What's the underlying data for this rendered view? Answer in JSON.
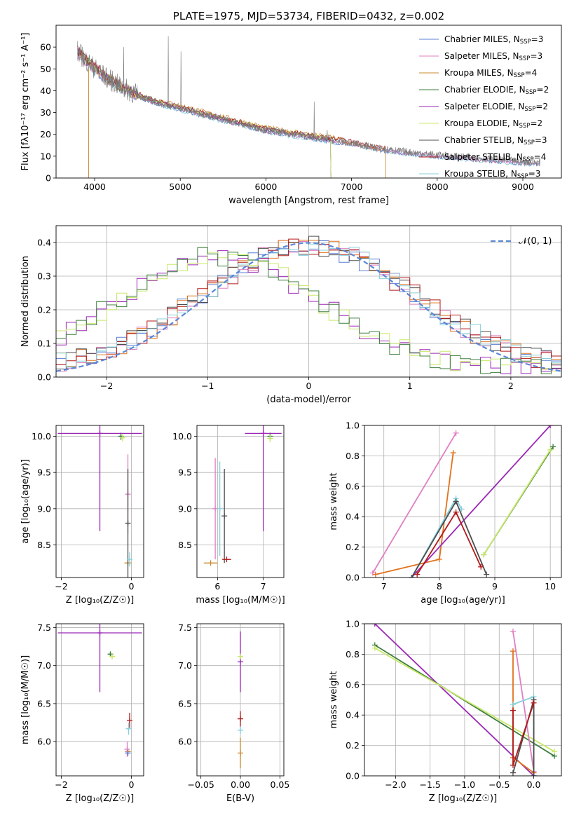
{
  "colors": {
    "chabrier_miles": "#5b7fd4",
    "salpeter_miles": "#e07fc2",
    "kroupa_miles": "#c98a2e",
    "chabrier_elodie": "#3f7f3f",
    "salpeter_elodie": "#9b27b6",
    "kroupa_elodie": "#c8e86a",
    "chabrier_stelib": "#4d4d4d",
    "salpeter_stelib": "#b21a1a",
    "kroupa_stelib": "#86d0dc",
    "orange": "#e0741f",
    "gauss": "#5b87d6"
  },
  "chart_data": [
    {
      "id": "spectrum",
      "type": "line",
      "title": "PLATE=1975, MJD=53734, FIBERID=0432, z=0.002",
      "xlabel": "wavelength [Angstrom, rest frame]",
      "ylabel": "Flux [fλ10⁻¹⁷ erg cm⁻² s⁻¹ A⁻¹]",
      "xlim": [
        3550,
        9450
      ],
      "ylim": [
        0,
        70
      ],
      "xticks": [
        4000,
        5000,
        6000,
        7000,
        8000,
        9000
      ],
      "yticks": [
        0,
        10,
        20,
        30,
        40,
        50,
        60
      ],
      "legend_position": "top-right",
      "legend": [
        {
          "label": "Chabrier MILES, N",
          "sub": "SSP",
          "suffix": "=3",
          "color": "chabrier_miles"
        },
        {
          "label": "Salpeter MILES, N",
          "sub": "SSP",
          "suffix": "=3",
          "color": "salpeter_miles"
        },
        {
          "label": "Kroupa MILES, N",
          "sub": "SSP",
          "suffix": "=4",
          "color": "kroupa_miles"
        },
        {
          "label": "Chabrier ELODIE, N",
          "sub": "SSP",
          "suffix": "=2",
          "color": "chabrier_elodie"
        },
        {
          "label": "Salpeter ELODIE, N",
          "sub": "SSP",
          "suffix": "=2",
          "color": "salpeter_elodie"
        },
        {
          "label": "Kroupa ELODIE, N",
          "sub": "SSP",
          "suffix": "=2",
          "color": "kroupa_elodie"
        },
        {
          "label": "Chabrier STELIB, N",
          "sub": "SSP",
          "suffix": "=3",
          "color": "chabrier_stelib"
        },
        {
          "label": "Salpeter STELIB, N",
          "sub": "SSP",
          "suffix": "=4",
          "color": "salpeter_stelib"
        },
        {
          "label": "Kroupa STELIB, N",
          "sub": "SSP",
          "suffix": "=3",
          "color": "kroupa_stelib"
        }
      ],
      "continuum": [
        [
          3800,
          58
        ],
        [
          3950,
          52
        ],
        [
          4100,
          47
        ],
        [
          4300,
          42
        ],
        [
          4500,
          38
        ],
        [
          4700,
          35
        ],
        [
          5000,
          32
        ],
        [
          5300,
          29
        ],
        [
          5600,
          26
        ],
        [
          6000,
          22
        ],
        [
          6500,
          19
        ],
        [
          7000,
          16
        ],
        [
          7400,
          13
        ],
        [
          8000,
          10.5
        ],
        [
          8500,
          9
        ],
        [
          9000,
          7.5
        ],
        [
          9200,
          7
        ]
      ],
      "emission_lines": [
        [
          4340,
          60
        ],
        [
          4861,
          65
        ],
        [
          5007,
          58
        ],
        [
          6563,
          35
        ],
        [
          6717,
          22
        ],
        [
          6731,
          20
        ]
      ],
      "model_ends": [
        {
          "series": "kroupa_miles",
          "x": 3930,
          "drop": true
        },
        {
          "series": "kroupa_elodie",
          "x": 6760,
          "drop": true
        },
        {
          "series": "kroupa_miles",
          "x": 7400,
          "drop": true
        }
      ]
    },
    {
      "id": "residuals",
      "type": "histogram",
      "xlabel": "(data-model)/error",
      "ylabel": "Normed distribution",
      "xlim": [
        -2.5,
        2.5
      ],
      "ylim": [
        0,
        0.45
      ],
      "xticks": [
        -2,
        -1,
        0,
        1,
        2
      ],
      "yticks": [
        0.0,
        0.1,
        0.2,
        0.3,
        0.4
      ],
      "gauss_label": "𝒩(0, 1)",
      "legend_position": "top-right",
      "bin_width": 0.1
    },
    {
      "id": "age_Z",
      "type": "scatter",
      "xlabel": "Z [log₁₀(Z/Z☉)]",
      "ylabel": "age  [log₁₀(age/yr)]",
      "xlim": [
        -2.15,
        0.35
      ],
      "ylim": [
        8.05,
        10.15
      ],
      "xticks": [
        -2,
        0
      ],
      "yticks": [
        8.5,
        9.0,
        9.5,
        10.0
      ],
      "points": [
        {
          "x": -0.3,
          "y": 10.0,
          "ex": 0.05,
          "ey": 0.05,
          "color": "chabrier_elodie"
        },
        {
          "x": -0.25,
          "y": 9.98,
          "ex": 0.05,
          "ey": 0.05,
          "color": "kroupa_elodie"
        },
        {
          "x": -0.9,
          "y": 10.04,
          "ex": 1.2,
          "ey": 1.35,
          "color": "salpeter_elodie"
        },
        {
          "x": -0.1,
          "y": 8.25,
          "ex": 0.1,
          "ey": 0.0,
          "color": "kroupa_miles"
        },
        {
          "x": -0.1,
          "y": 9.2,
          "ex": 0.0,
          "ey": 0.55,
          "color": "salpeter_miles"
        },
        {
          "x": -0.1,
          "y": 8.8,
          "ex": 0.0,
          "ey": 0.75,
          "color": "chabrier_stelib"
        },
        {
          "x": -0.05,
          "y": 8.3,
          "ex": 0.0,
          "ey": 0.1,
          "color": "kroupa_stelib"
        }
      ]
    },
    {
      "id": "age_mass",
      "type": "scatter",
      "xlabel": "mass [log₁₀(M/M☉)]",
      "ylabel": "",
      "xlim": [
        5.55,
        7.45
      ],
      "ylim": [
        8.05,
        10.15
      ],
      "xticks": [
        6,
        7
      ],
      "yticks": [
        8.5,
        9.0,
        9.5,
        10.0
      ],
      "points": [
        {
          "x": 7.15,
          "y": 10.0,
          "ex": 0.03,
          "ey": 0.05,
          "color": "chabrier_elodie"
        },
        {
          "x": 7.15,
          "y": 9.97,
          "ex": 0.03,
          "ey": 0.05,
          "color": "kroupa_elodie"
        },
        {
          "x": 7.0,
          "y": 10.04,
          "ex": 0.4,
          "ey": 1.35,
          "color": "salpeter_elodie"
        },
        {
          "x": 5.85,
          "y": 8.25,
          "ex": 0.15,
          "ey": 0.0,
          "color": "kroupa_miles"
        },
        {
          "x": 5.95,
          "y": 9.0,
          "ex": 0.0,
          "ey": 0.7,
          "color": "salpeter_miles"
        },
        {
          "x": 6.15,
          "y": 8.9,
          "ex": 0.0,
          "ey": 0.65,
          "color": "chabrier_stelib"
        },
        {
          "x": 6.2,
          "y": 8.3,
          "ex": 0.1,
          "ey": 0.0,
          "color": "salpeter_stelib"
        },
        {
          "x": 6.05,
          "y": 9.0,
          "ex": 0.0,
          "ey": 0.65,
          "color": "kroupa_stelib"
        }
      ]
    },
    {
      "id": "weight_age",
      "type": "line",
      "xlabel": "age  [log₁₀(age/yr)]",
      "ylabel": "mass weight",
      "xlim": [
        6.65,
        10.2
      ],
      "ylim": [
        0,
        1.0
      ],
      "xticks": [
        7,
        8,
        9,
        10
      ],
      "yticks": [
        0.0,
        0.2,
        0.4,
        0.6,
        0.8,
        1.0
      ],
      "series": [
        {
          "color": "salpeter_miles",
          "x": [
            6.8,
            8.3
          ],
          "y": [
            0.03,
            0.95
          ]
        },
        {
          "color": "orange",
          "x": [
            6.85,
            8.0,
            8.25
          ],
          "y": [
            0.02,
            0.12,
            0.82
          ]
        },
        {
          "color": "salpeter_elodie",
          "x": [
            7.5,
            10.0
          ],
          "y": [
            0.0,
            1.0
          ]
        },
        {
          "color": "chabrier_elodie",
          "x": [
            8.8,
            10.05
          ],
          "y": [
            0.15,
            0.86
          ]
        },
        {
          "color": "kroupa_elodie",
          "x": [
            8.8,
            10.0
          ],
          "y": [
            0.15,
            0.84
          ]
        },
        {
          "color": "kroupa_stelib",
          "x": [
            7.5,
            8.3,
            8.4
          ],
          "y": [
            0.0,
            0.52,
            0.45
          ]
        },
        {
          "color": "chabrier_stelib",
          "x": [
            7.5,
            8.3,
            8.85
          ],
          "y": [
            0.0,
            0.5,
            0.02
          ]
        },
        {
          "color": "salpeter_stelib",
          "x": [
            7.6,
            8.3,
            8.75
          ],
          "y": [
            0.02,
            0.43,
            0.07
          ]
        }
      ]
    },
    {
      "id": "mass_Z",
      "type": "scatter",
      "xlabel": "Z [log₁₀(Z/Z☉)]",
      "ylabel": "mass [log₁₀(M/M☉)]",
      "xlim": [
        -2.15,
        0.35
      ],
      "ylim": [
        5.55,
        7.55
      ],
      "xticks": [
        -2,
        0
      ],
      "yticks": [
        6.0,
        6.5,
        7.0,
        7.5
      ],
      "points": [
        {
          "x": -0.6,
          "y": 7.15,
          "ex": 0.08,
          "ey": 0.03,
          "color": "chabrier_elodie"
        },
        {
          "x": -0.55,
          "y": 7.12,
          "ex": 0.08,
          "ey": 0.03,
          "color": "kroupa_elodie"
        },
        {
          "x": -0.9,
          "y": 7.43,
          "ex": 1.2,
          "ey": 0.78,
          "color": "salpeter_elodie"
        },
        {
          "x": -0.1,
          "y": 5.87,
          "ex": 0.08,
          "ey": 0.0,
          "color": "kroupa_miles"
        },
        {
          "x": -0.12,
          "y": 5.9,
          "ex": 0.0,
          "ey": 0.1,
          "color": "salpeter_miles"
        },
        {
          "x": -0.1,
          "y": 5.85,
          "ex": 0.08,
          "ey": 0.0,
          "color": "chabrier_miles"
        },
        {
          "x": -0.05,
          "y": 6.28,
          "ex": 0.0,
          "ey": 0.1,
          "color": "salpeter_stelib"
        },
        {
          "x": -0.08,
          "y": 6.17,
          "ex": 0.0,
          "ey": 0.08,
          "color": "kroupa_stelib"
        }
      ]
    },
    {
      "id": "mass_ebv",
      "type": "scatter",
      "xlabel": "E(B-V)",
      "ylabel": "",
      "xlim": [
        -0.055,
        0.055
      ],
      "ylim": [
        5.55,
        7.55
      ],
      "xticks": [
        -0.05,
        0.0,
        0.05
      ],
      "xtick_labels": [
        "−0.05",
        "0.00",
        "0.05"
      ],
      "yticks": [
        6.0,
        6.5,
        7.0,
        7.5
      ],
      "points": [
        {
          "x": 0.0,
          "y": 7.05,
          "ex": 0,
          "ey": 0.4,
          "color": "salpeter_elodie"
        },
        {
          "x": 0.0,
          "y": 7.12,
          "ex": 0,
          "ey": 0.03,
          "color": "kroupa_elodie"
        },
        {
          "x": 0.0,
          "y": 6.3,
          "ex": 0,
          "ey": 0.1,
          "color": "salpeter_stelib"
        },
        {
          "x": 0.0,
          "y": 5.85,
          "ex": 0,
          "ey": 0.2,
          "color": "kroupa_miles"
        },
        {
          "x": 0.0,
          "y": 6.15,
          "ex": 0,
          "ey": 0.05,
          "color": "kroupa_stelib"
        }
      ]
    },
    {
      "id": "weight_Z",
      "type": "line",
      "xlabel": "Z [log₁₀(Z/Z☉)]",
      "ylabel": "mass weight",
      "xlim": [
        -2.45,
        0.4
      ],
      "ylim": [
        0,
        1.0
      ],
      "xticks": [
        -2.0,
        -1.5,
        -1.0,
        -0.5,
        0.0
      ],
      "xtick_labels": [
        "−2.0",
        "−1.5",
        "−1.0",
        "−0.5",
        "0.0"
      ],
      "yticks": [
        0.0,
        0.2,
        0.4,
        0.6,
        0.8,
        1.0
      ],
      "series": [
        {
          "color": "salpeter_elodie",
          "x": [
            -2.3,
            0.0
          ],
          "y": [
            1.0,
            0.0
          ]
        },
        {
          "color": "chabrier_elodie",
          "x": [
            -2.3,
            0.3
          ],
          "y": [
            0.86,
            0.13
          ]
        },
        {
          "color": "kroupa_elodie",
          "x": [
            -2.3,
            0.3
          ],
          "y": [
            0.84,
            0.16
          ]
        },
        {
          "color": "salpeter_miles",
          "x": [
            -0.3,
            0.0
          ],
          "y": [
            0.95,
            0.03
          ]
        },
        {
          "color": "orange",
          "x": [
            -0.3,
            -0.3,
            0.0
          ],
          "y": [
            0.82,
            0.12,
            0.02
          ]
        },
        {
          "color": "kroupa_stelib",
          "x": [
            -0.3,
            0.0,
            0.0
          ],
          "y": [
            0.47,
            0.52,
            0.0
          ]
        },
        {
          "color": "chabrier_stelib",
          "x": [
            -0.3,
            0.0,
            0.0
          ],
          "y": [
            0.02,
            0.5,
            0.0
          ]
        },
        {
          "color": "salpeter_stelib",
          "x": [
            -0.3,
            -0.3,
            0.0
          ],
          "y": [
            0.43,
            0.07,
            0.48
          ]
        }
      ]
    }
  ]
}
